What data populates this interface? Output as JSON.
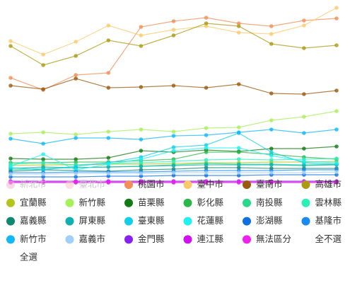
{
  "chart_data": {
    "type": "line",
    "categories": [
      null,
      null,
      null,
      null,
      null,
      null,
      null,
      null,
      null,
      null,
      null
    ],
    "ylim": [
      0,
      250
    ],
    "series": [
      {
        "name": "新北市",
        "color": "#f4b6cf",
        "hidden": true,
        "values": [
          null,
          null,
          null,
          null,
          null,
          null,
          null,
          null,
          null,
          null,
          null
        ]
      },
      {
        "name": "臺北市",
        "color": "#f9c6c6",
        "hidden": true,
        "values": [
          null,
          null,
          null,
          null,
          null,
          null,
          null,
          null,
          null,
          null,
          null
        ]
      },
      {
        "name": "桃園市",
        "color": "#f28e58",
        "values": [
          150,
          133,
          154,
          157,
          222,
          230,
          235,
          227,
          223,
          231,
          234
        ]
      },
      {
        "name": "臺中市",
        "color": "#fcc96a",
        "values": [
          202,
          183,
          201,
          224,
          210,
          218,
          223,
          214,
          212,
          224,
          249
        ]
      },
      {
        "name": "臺南市",
        "color": "#9b5a0e",
        "values": [
          139,
          134,
          149,
          136,
          137,
          139,
          136,
          141,
          128,
          127,
          132
        ]
      },
      {
        "name": "高雄市",
        "color": "#ad9a12",
        "values": [
          195,
          168,
          181,
          203,
          195,
          210,
          227,
          223,
          198,
          192,
          196
        ]
      },
      {
        "name": "宜蘭縣",
        "color": "#b4c41a",
        "values": [
          26,
          27,
          27,
          28,
          28,
          29,
          30,
          30,
          31,
          31,
          32
        ]
      },
      {
        "name": "新竹縣",
        "color": "#a6f05a",
        "values": [
          71,
          73,
          70,
          74,
          77,
          74,
          79,
          80,
          90,
          95,
          103
        ]
      },
      {
        "name": "苗栗縣",
        "color": "#127a12",
        "values": [
          36,
          35,
          35,
          37,
          47,
          45,
          48,
          46,
          50,
          50,
          53
        ]
      },
      {
        "name": "彰化縣",
        "color": "#2ab84a",
        "values": [
          30,
          30,
          31,
          31,
          33,
          35,
          45,
          45,
          42,
          38,
          35
        ]
      },
      {
        "name": "南投縣",
        "color": "#2ad88a",
        "values": [
          20,
          22,
          23,
          24,
          25,
          27,
          29,
          28,
          28,
          27,
          28
        ]
      },
      {
        "name": "雲林縣",
        "color": "#2af0b8",
        "values": [
          28,
          30,
          27,
          29,
          30,
          32,
          34,
          35,
          34,
          35,
          36
        ]
      },
      {
        "name": "嘉義縣",
        "color": "#108870",
        "values": [
          18,
          20,
          19,
          18,
          20,
          21,
          23,
          23,
          22,
          22,
          22
        ]
      },
      {
        "name": "屏東縣",
        "color": "#10b0b0",
        "values": [
          22,
          24,
          23,
          24,
          25,
          26,
          27,
          27,
          27,
          26,
          27
        ]
      },
      {
        "name": "臺東縣",
        "color": "#10d0e8",
        "values": [
          23,
          20,
          25,
          30,
          38,
          52,
          55,
          72,
          45,
          30,
          28
        ]
      },
      {
        "name": "花蓮縣",
        "color": "#20f0f0",
        "values": [
          25,
          42,
          20,
          28,
          35,
          47,
          51,
          51,
          40,
          32,
          30
        ]
      },
      {
        "name": "澎湖縣",
        "color": "#1070e0",
        "values": [
          10,
          10,
          10,
          11,
          11,
          12,
          12,
          12,
          13,
          13,
          13
        ]
      },
      {
        "name": "基隆市",
        "color": "#1a8af0",
        "values": [
          16,
          16,
          17,
          17,
          17,
          18,
          19,
          19,
          19,
          20,
          20
        ]
      },
      {
        "name": "新竹市",
        "color": "#10b8f8",
        "values": [
          64,
          57,
          65,
          65,
          63,
          68,
          69,
          73,
          77,
          72,
          77
        ]
      },
      {
        "name": "嘉義市",
        "color": "#a0d0f8",
        "values": [
          14,
          14,
          15,
          15,
          15,
          16,
          16,
          16,
          16,
          16,
          17
        ]
      },
      {
        "name": "金門縣",
        "color": "#8a20f0",
        "values": [
          4,
          4,
          4,
          4,
          4,
          4,
          4,
          4,
          4,
          4,
          4
        ]
      },
      {
        "name": "連江縣",
        "color": "#d010f0",
        "values": [
          2,
          2,
          2,
          2,
          2,
          2,
          2,
          2,
          2,
          2,
          2
        ]
      },
      {
        "name": "無法區分",
        "color": "#f020f0",
        "values": [
          3,
          3,
          3,
          3,
          3,
          3,
          3,
          3,
          3,
          3,
          3
        ]
      }
    ],
    "legend_actions": [
      "全不選",
      "全選"
    ]
  }
}
